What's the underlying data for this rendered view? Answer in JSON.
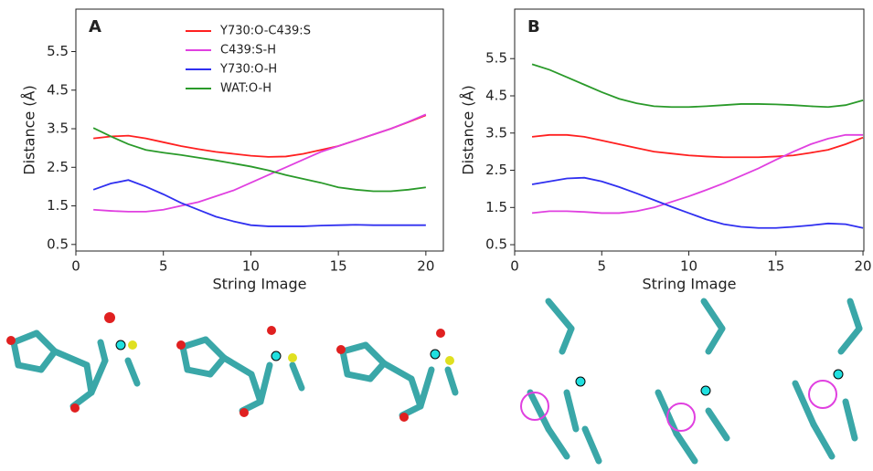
{
  "chart_data": [
    {
      "type": "line",
      "panel_label": "A",
      "x_label": "String Image",
      "y_label": "Distance (Å)",
      "x": [
        1,
        2,
        3,
        4,
        5,
        6,
        7,
        8,
        9,
        10,
        11,
        12,
        13,
        14,
        15,
        16,
        17,
        18,
        19,
        20
      ],
      "xlim": [
        0,
        21
      ],
      "ylim": [
        0.33,
        6.6
      ],
      "xticks": [
        0,
        5,
        10,
        15,
        20
      ],
      "yticks": [
        0.5,
        1.5,
        2.5,
        3.5,
        4.5,
        5.5
      ],
      "legend": "upper center",
      "series": [
        {
          "name": "Y730:O-C439:S",
          "color": "#ff2020",
          "values": [
            3.25,
            3.3,
            3.32,
            3.25,
            3.15,
            3.05,
            2.97,
            2.9,
            2.85,
            2.8,
            2.77,
            2.78,
            2.85,
            2.95,
            3.05,
            3.2,
            3.35,
            3.5,
            3.67,
            3.85
          ]
        },
        {
          "name": "C439:S-H",
          "color": "#e040e0",
          "values": [
            1.4,
            1.37,
            1.35,
            1.35,
            1.4,
            1.5,
            1.6,
            1.75,
            1.9,
            2.1,
            2.3,
            2.5,
            2.7,
            2.9,
            3.05,
            3.2,
            3.35,
            3.5,
            3.68,
            3.87
          ]
        },
        {
          "name": "Y730:O-H",
          "color": "#3030f0",
          "values": [
            1.92,
            2.08,
            2.17,
            2.0,
            1.8,
            1.58,
            1.4,
            1.22,
            1.1,
            1.0,
            0.97,
            0.97,
            0.97,
            0.99,
            1.0,
            1.01,
            1.0,
            1.0,
            1.0,
            1.0
          ]
        },
        {
          "name": "WAT:O-H",
          "color": "#2a9a2a",
          "values": [
            3.52,
            3.3,
            3.1,
            2.95,
            2.88,
            2.82,
            2.75,
            2.68,
            2.6,
            2.52,
            2.42,
            2.3,
            2.2,
            2.1,
            1.98,
            1.92,
            1.88,
            1.88,
            1.92,
            1.98
          ]
        }
      ]
    },
    {
      "type": "line",
      "panel_label": "B",
      "x_label": "String Image",
      "y_label": "Distance (Å)",
      "x": [
        1,
        2,
        3,
        4,
        5,
        6,
        7,
        8,
        9,
        10,
        11,
        12,
        13,
        14,
        15,
        16,
        17,
        18,
        19,
        20
      ],
      "xlim": [
        0,
        20.05
      ],
      "ylim": [
        0.33,
        6.83
      ],
      "xticks": [
        0,
        5,
        10,
        15,
        20
      ],
      "yticks": [
        0.5,
        1.5,
        2.5,
        3.5,
        4.5,
        5.5
      ],
      "series": [
        {
          "color": "#ff2020",
          "values": [
            3.4,
            3.45,
            3.45,
            3.4,
            3.3,
            3.2,
            3.1,
            3.0,
            2.95,
            2.9,
            2.87,
            2.85,
            2.85,
            2.85,
            2.87,
            2.9,
            2.97,
            3.05,
            3.2,
            3.38
          ]
        },
        {
          "color": "#e040e0",
          "values": [
            1.35,
            1.4,
            1.4,
            1.38,
            1.35,
            1.35,
            1.4,
            1.5,
            1.65,
            1.8,
            1.97,
            2.15,
            2.35,
            2.55,
            2.78,
            3.0,
            3.2,
            3.35,
            3.45,
            3.45
          ]
        },
        {
          "color": "#3030f0",
          "values": [
            2.12,
            2.2,
            2.28,
            2.3,
            2.2,
            2.05,
            1.88,
            1.7,
            1.52,
            1.35,
            1.18,
            1.05,
            0.98,
            0.95,
            0.95,
            0.98,
            1.02,
            1.07,
            1.05,
            0.95
          ]
        },
        {
          "color": "#2a9a2a",
          "values": [
            5.35,
            5.2,
            5.0,
            4.8,
            4.6,
            4.42,
            4.3,
            4.22,
            4.2,
            4.2,
            4.22,
            4.25,
            4.28,
            4.28,
            4.27,
            4.25,
            4.22,
            4.2,
            4.25,
            4.38
          ]
        }
      ]
    }
  ]
}
